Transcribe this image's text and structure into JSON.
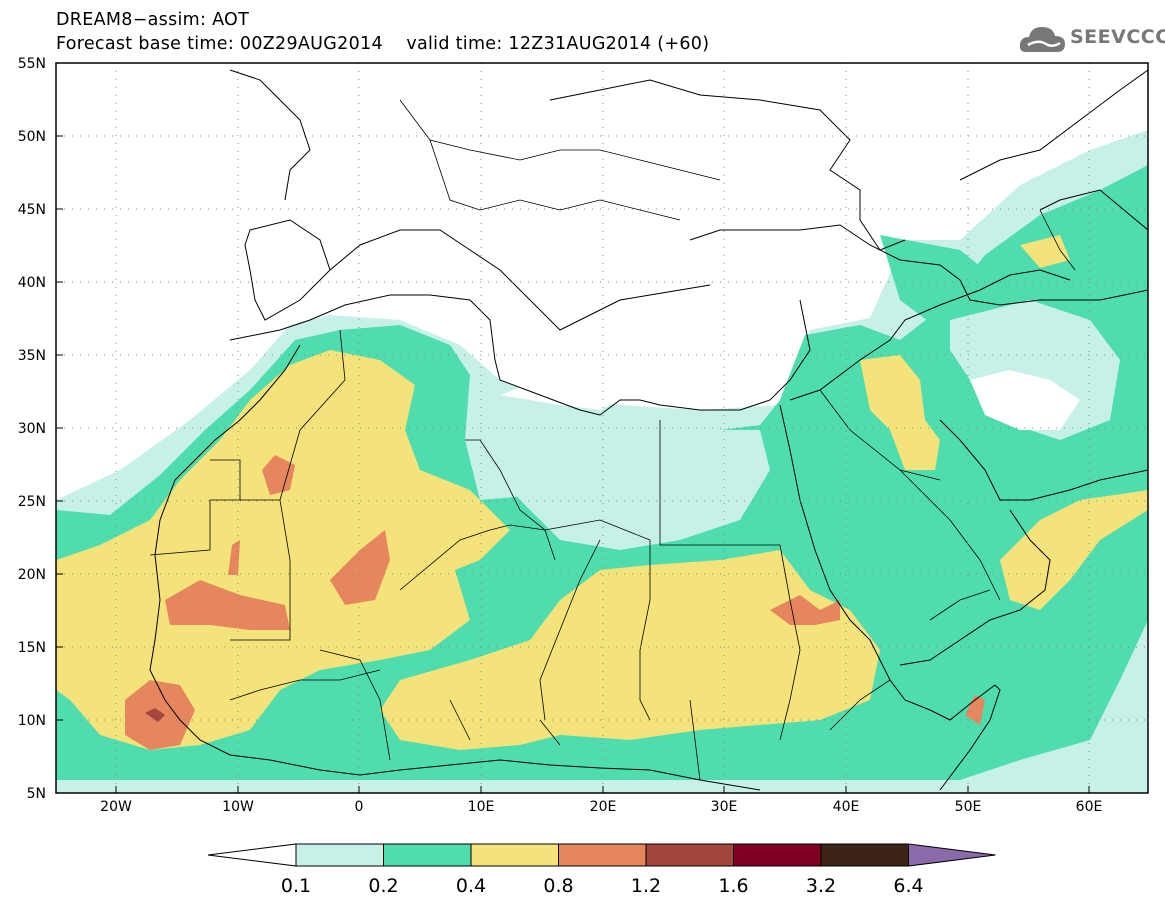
{
  "header": {
    "line1": "DREAM8−assim: AOT",
    "line2": "Forecast base time: 00Z29AUG2014    valid time: 12Z31AUG2014 (+60)"
  },
  "logo": {
    "text": "SEEVCCC",
    "icon": "cloud-icon"
  },
  "map": {
    "lat_labels": [
      "55N",
      "50N",
      "45N",
      "40N",
      "35N",
      "30N",
      "25N",
      "20N",
      "15N",
      "10N",
      "5N"
    ],
    "lon_labels": [
      "20W",
      "10W",
      "0",
      "10E",
      "20E",
      "30E",
      "40E",
      "50E",
      "60E"
    ],
    "grid": "dotted"
  },
  "colorbar": {
    "labels": [
      "0.1",
      "0.2",
      "0.4",
      "0.8",
      "1.2",
      "1.6",
      "3.2",
      "6.4"
    ],
    "colors": [
      "#ffffff",
      "#c7f0e8",
      "#4fdcae",
      "#f4e27a",
      "#e6865e",
      "#a4463d",
      "#7d0021",
      "#3b2416",
      "#8a6aa8"
    ]
  },
  "colors": {
    "level_01": "#c7f0e8",
    "level_02": "#4fdcae",
    "level_04": "#f4e27a",
    "level_08": "#e6865e",
    "level_12": "#a4463d"
  }
}
